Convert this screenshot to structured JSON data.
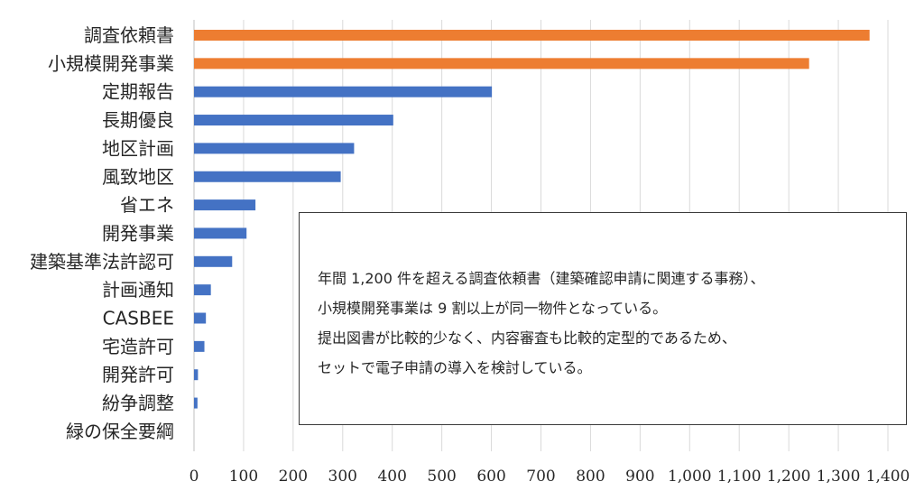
{
  "chart_data": {
    "type": "bar",
    "orientation": "horizontal",
    "categories": [
      "調査依頼書",
      "小規模開発事業",
      "定期報告",
      "長期優良",
      "地区計画",
      "風致地区",
      "省エネ",
      "開発事業",
      "建築基準法許認可",
      "計画通知",
      "CASBEE",
      "宅造許可",
      "開発許可",
      "紛争調整",
      "緑の保全要綱"
    ],
    "values": [
      1363,
      1241,
      601,
      402,
      323,
      296,
      124,
      106,
      77,
      34,
      24,
      21,
      8,
      7,
      0
    ],
    "highlight_count": 2,
    "colors": {
      "highlight": "#ED7D31",
      "normal": "#4472C4",
      "grid": "#D9D9D9"
    },
    "xlim": [
      0,
      1400
    ],
    "xticks": [
      0,
      100,
      200,
      300,
      400,
      500,
      600,
      700,
      800,
      900,
      1000,
      1100,
      1200,
      1300,
      1400
    ],
    "xtick_labels": [
      "0",
      "100",
      "200",
      "300",
      "400",
      "500",
      "600",
      "700",
      "800",
      "900",
      "1,000",
      "1,100",
      "1,200",
      "1,300",
      "1,400"
    ],
    "grid": true,
    "legend": "none",
    "title": "",
    "xlabel": "",
    "ylabel": ""
  },
  "note": {
    "lines": [
      "年間 1,200 件を超える調査依頼書（建築確認申請に関連する事務）、",
      "小規模開発事業は 9 割以上が同一物件となっている。",
      "提出図書が比較的少なく、内容審査も比較的定型的であるため、",
      "セットで電子申請の導入を検討している。"
    ]
  }
}
